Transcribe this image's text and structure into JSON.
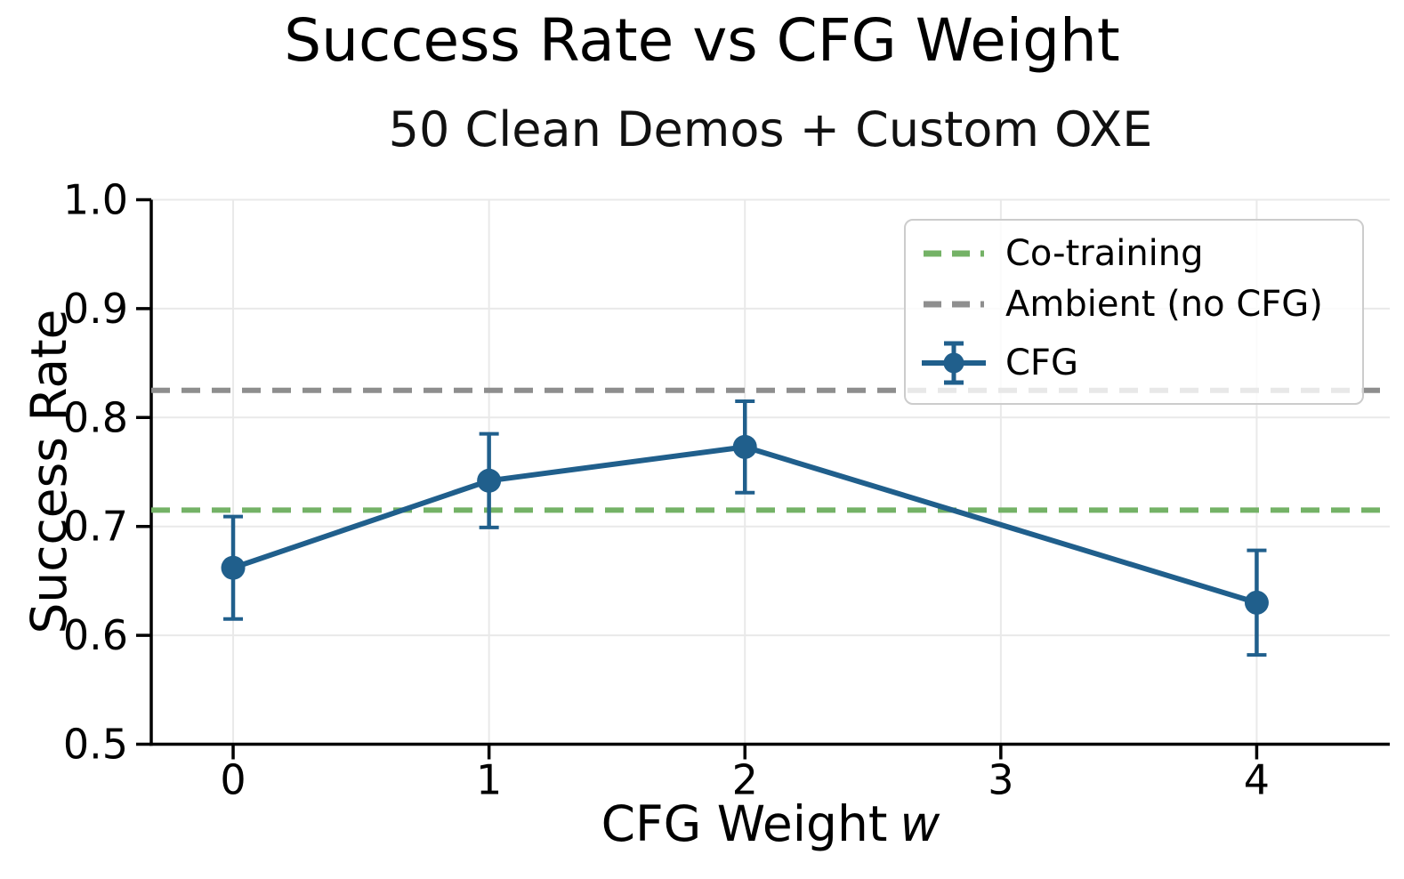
{
  "title": "Success Rate vs CFG Weight",
  "subtitle": "50 Clean Demos + Custom OXE",
  "legend": {
    "items": [
      {
        "label": "Co-training"
      },
      {
        "label": "Ambient (no CFG)"
      },
      {
        "label": "CFG"
      }
    ]
  },
  "colors": {
    "blue": "#205f8c",
    "green": "#74b266",
    "gray": "#8e8e8e",
    "grid": "#e9e9e9",
    "axis": "#000000",
    "legend_border": "#cccccc",
    "legend_bg": "rgba(255,255,255,0.8)"
  },
  "chart_data": {
    "type": "line",
    "title": "Success Rate vs CFG Weight",
    "subtitle": "50 Clean Demos + Custom OXE",
    "xlabel": "CFG Weight",
    "xlabel_var": "w",
    "ylabel": "Success Rate",
    "xlim": [
      -0.32,
      4.52
    ],
    "ylim": [
      0.5,
      1.0
    ],
    "xticks": [
      0,
      1,
      2,
      3,
      4
    ],
    "xtick_labels": [
      "0",
      "1",
      "2",
      "3",
      "4"
    ],
    "yticks": [
      0.5,
      0.6,
      0.7,
      0.8,
      0.9,
      1.0
    ],
    "ytick_labels": [
      "0.5",
      "0.6",
      "0.7",
      "0.8",
      "0.9",
      "1.0"
    ],
    "grid": true,
    "legend_position": "upper right",
    "series": [
      {
        "name": "Co-training",
        "type": "hline",
        "y": 0.715,
        "style": "dashed",
        "color_key": "green"
      },
      {
        "name": "Ambient (no CFG)",
        "type": "hline",
        "y": 0.825,
        "style": "dashed",
        "color_key": "gray"
      },
      {
        "name": "CFG",
        "type": "line_errorbar",
        "color_key": "blue",
        "x": [
          0,
          1,
          2,
          4
        ],
        "y": [
          0.662,
          0.742,
          0.773,
          0.63
        ],
        "yerr": [
          0.047,
          0.043,
          0.042,
          0.048
        ]
      }
    ]
  }
}
